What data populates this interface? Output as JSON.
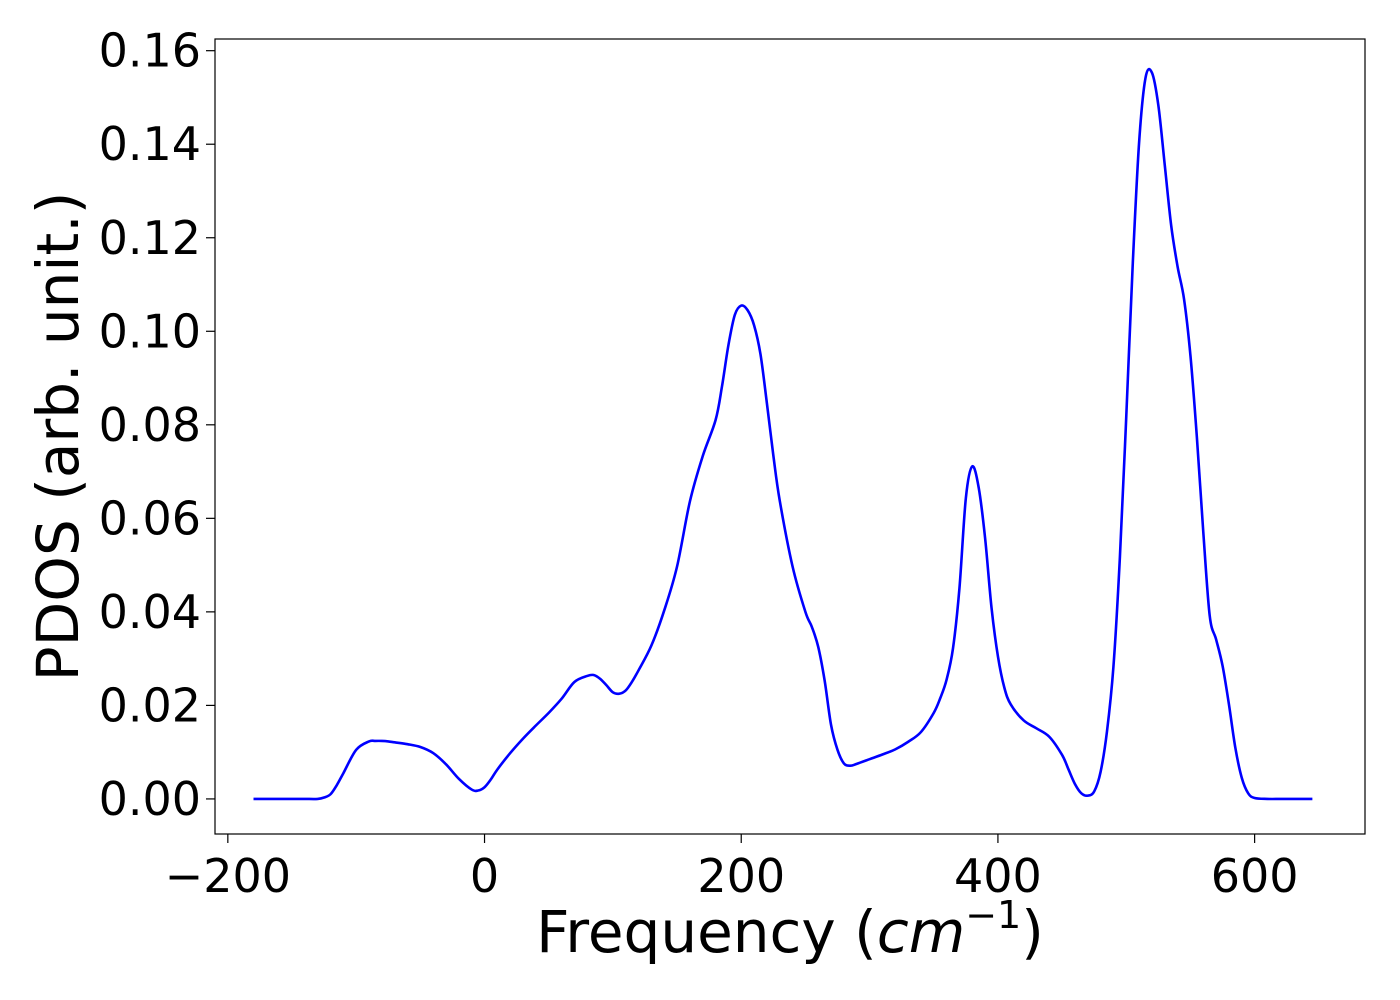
{
  "chart_data": {
    "type": "line",
    "title": "",
    "xlabel": "Frequency (",
    "xlabel_unit": "cm",
    "xlabel_exponent": "−1",
    "xlabel_close": ")",
    "ylabel": "PDOS (arb. unit.)",
    "xlim": [
      -210,
      686
    ],
    "ylim": [
      -0.0075,
      0.1625
    ],
    "xticks": [
      -200,
      0,
      200,
      400,
      600
    ],
    "xtick_labels": [
      "−200",
      "0",
      "200",
      "400",
      "600"
    ],
    "yticks": [
      0.0,
      0.02,
      0.04,
      0.06,
      0.08,
      0.1,
      0.12,
      0.14,
      0.16
    ],
    "ytick_labels": [
      "0.00",
      "0.02",
      "0.04",
      "0.06",
      "0.08",
      "0.10",
      "0.12",
      "0.14",
      "0.16"
    ],
    "grid": false,
    "legend": "none",
    "series": [
      {
        "color": "#0000ff",
        "x": [
          -180,
          -165,
          -150,
          -140,
          -130,
          -125,
          -120,
          -115,
          -110,
          -100,
          -90,
          -85,
          -80,
          -75,
          -70,
          -60,
          -50,
          -40,
          -30,
          -20,
          -10,
          -5,
          0,
          5,
          10,
          20,
          30,
          40,
          50,
          60,
          70,
          80,
          85,
          90,
          95,
          100,
          105,
          110,
          115,
          120,
          130,
          140,
          150,
          160,
          170,
          180,
          185,
          190,
          195,
          200,
          205,
          210,
          215,
          220,
          225,
          230,
          240,
          250,
          255,
          260,
          265,
          270,
          275,
          280,
          285,
          290,
          300,
          310,
          320,
          330,
          340,
          350,
          355,
          360,
          365,
          370,
          375,
          380,
          385,
          390,
          395,
          400,
          405,
          410,
          420,
          430,
          440,
          450,
          455,
          460,
          465,
          470,
          475,
          480,
          485,
          490,
          495,
          500,
          505,
          510,
          515,
          520,
          525,
          530,
          535,
          540,
          545,
          550,
          555,
          560,
          565,
          570,
          575,
          580,
          585,
          590,
          595,
          600,
          610,
          620,
          630,
          645
        ],
        "y": [
          0.0,
          0.0,
          0.0,
          0.0,
          0.0,
          0.0003,
          0.001,
          0.003,
          0.0055,
          0.0105,
          0.0123,
          0.0124,
          0.0124,
          0.0123,
          0.0121,
          0.0117,
          0.0111,
          0.0098,
          0.0074,
          0.0043,
          0.002,
          0.0018,
          0.0025,
          0.0042,
          0.0063,
          0.0098,
          0.0129,
          0.0157,
          0.0184,
          0.0214,
          0.025,
          0.0263,
          0.0265,
          0.0257,
          0.0243,
          0.0228,
          0.0225,
          0.0232,
          0.0251,
          0.0275,
          0.0328,
          0.0403,
          0.0497,
          0.0636,
          0.0733,
          0.081,
          0.0882,
          0.097,
          0.1035,
          0.1055,
          0.1045,
          0.1013,
          0.0951,
          0.0846,
          0.0735,
          0.0638,
          0.0497,
          0.04,
          0.0368,
          0.0325,
          0.0253,
          0.0158,
          0.0105,
          0.0076,
          0.0071,
          0.0075,
          0.0085,
          0.0095,
          0.0106,
          0.0122,
          0.0143,
          0.0184,
          0.0215,
          0.0255,
          0.0322,
          0.045,
          0.0643,
          0.0711,
          0.0666,
          0.0558,
          0.0409,
          0.0305,
          0.0238,
          0.0202,
          0.0168,
          0.0151,
          0.0133,
          0.0094,
          0.0063,
          0.0032,
          0.0012,
          0.0007,
          0.0016,
          0.0058,
          0.0145,
          0.0283,
          0.0515,
          0.0818,
          0.1141,
          0.1404,
          0.1542,
          0.1553,
          0.1483,
          0.1355,
          0.1226,
          0.1138,
          0.1069,
          0.0948,
          0.0774,
          0.0571,
          0.0392,
          0.0341,
          0.0285,
          0.0202,
          0.0109,
          0.0045,
          0.0012,
          0.0002,
          0.0,
          0.0,
          0.0,
          0.0
        ]
      }
    ]
  }
}
